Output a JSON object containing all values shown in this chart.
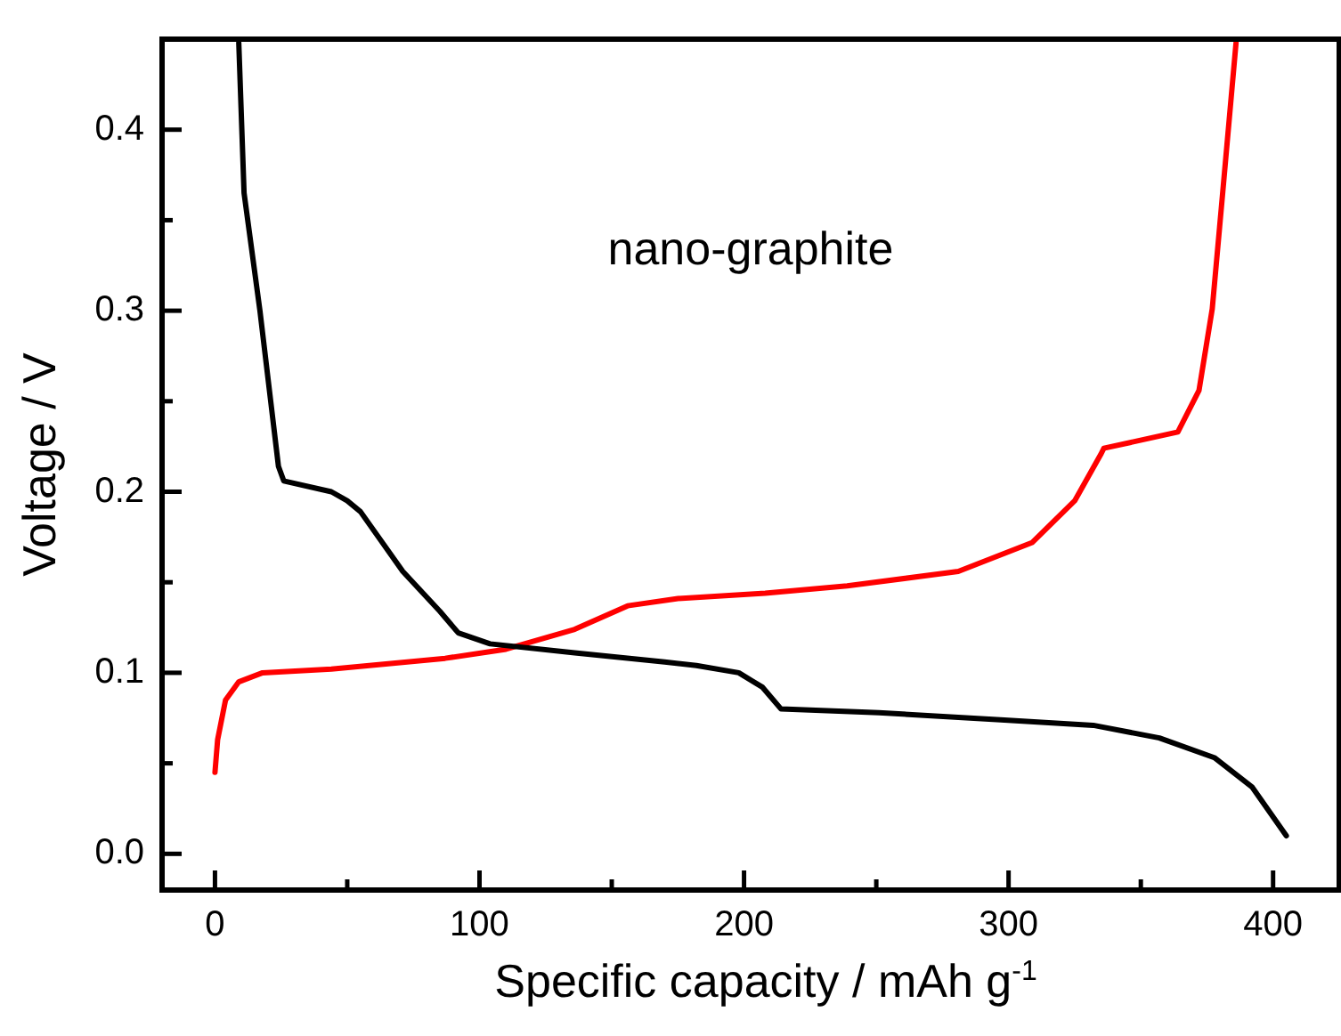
{
  "chart_data": {
    "type": "line",
    "xlabel": "Specific capacity / mAh g$^{-1}$",
    "ylabel": "Voltage / V",
    "annotations": [
      "nano-graphite"
    ],
    "xlim": [
      -20,
      425
    ],
    "ylim": [
      -0.02,
      0.45
    ],
    "xticks": [
      0,
      {
        "value": 50,
        "label": null
      },
      100,
      {
        "value": 150,
        "label": null
      },
      200,
      {
        "value": 250,
        "label": null
      },
      300,
      {
        "value": 350,
        "label": null
      },
      400
    ],
    "yticks": [
      {
        "value": 0,
        "label": "0.0"
      },
      {
        "value": 0.05,
        "label": null
      },
      {
        "value": 0.1,
        "label": "0.1"
      },
      {
        "value": 0.15,
        "label": null
      },
      {
        "value": 0.2,
        "label": "0.2"
      },
      {
        "value": 0.25,
        "label": null
      },
      {
        "value": 0.3,
        "label": "0.3"
      },
      {
        "value": 0.35,
        "label": null
      },
      {
        "value": 0.4,
        "label": "0.4"
      }
    ],
    "grid": false,
    "marker": "none",
    "line_style": "solid",
    "legend": false,
    "series": [
      {
        "color": "#000000",
        "x": [
          9,
          11,
          17,
          24,
          26,
          44,
          50,
          55,
          71,
          85,
          92,
          104,
          136,
          170,
          182,
          198,
          207,
          214,
          251,
          297,
          332,
          357,
          378,
          392,
          405
        ],
        "values": [
          0.448,
          0.365,
          0.3,
          0.214,
          0.206,
          0.2,
          0.195,
          0.189,
          0.156,
          0.134,
          0.122,
          0.116,
          0.111,
          0.106,
          0.104,
          0.1,
          0.092,
          0.08,
          0.078,
          0.074,
          0.071,
          0.064,
          0.053,
          0.037,
          0.01
        ]
      },
      {
        "color": "#ff0000",
        "x": [
          0,
          1,
          4,
          9,
          18,
          44,
          87,
          110,
          136,
          156,
          175,
          208,
          239,
          281,
          309,
          325,
          335,
          336,
          364,
          372,
          377,
          381,
          386
        ],
        "values": [
          0.045,
          0.063,
          0.085,
          0.095,
          0.1,
          0.102,
          0.108,
          0.113,
          0.124,
          0.137,
          0.141,
          0.144,
          0.148,
          0.156,
          0.172,
          0.195,
          0.221,
          0.224,
          0.233,
          0.256,
          0.301,
          0.366,
          0.448
        ]
      }
    ]
  }
}
